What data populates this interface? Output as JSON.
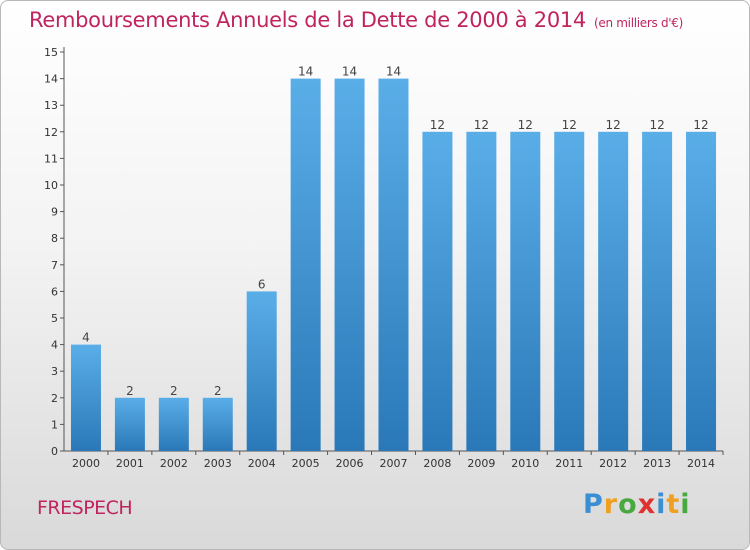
{
  "header": {
    "title": "Remboursements Annuels de la Dette de 2000 à 2014",
    "unit": "(en milliers d'€)"
  },
  "footer": {
    "commune": "FRESPECH",
    "logo_letters": [
      "P",
      "r",
      "o",
      "x",
      "i",
      "t",
      "i"
    ],
    "logo_colors": [
      "#3a8fd4",
      "#f0a020",
      "#4aa840",
      "#e03030",
      "#3a8fd4",
      "#f0a020",
      "#4aa840"
    ]
  },
  "chart_data": {
    "type": "bar",
    "title": "Remboursements Annuels de la Dette de 2000 à 2014",
    "subtitle": "(en milliers d'€)",
    "xlabel": "",
    "ylabel": "",
    "categories": [
      "2000",
      "2001",
      "2002",
      "2003",
      "2004",
      "2005",
      "2006",
      "2007",
      "2008",
      "2009",
      "2010",
      "2011",
      "2012",
      "2013",
      "2014"
    ],
    "values": [
      4,
      2,
      2,
      2,
      6,
      14,
      14,
      14,
      12,
      12,
      12,
      12,
      12,
      12,
      12
    ],
    "ylim": [
      0,
      15
    ],
    "yticks": [
      0,
      1,
      2,
      3,
      4,
      5,
      6,
      7,
      8,
      9,
      10,
      11,
      12,
      13,
      14,
      15
    ],
    "grid": false,
    "bar_color_light": "#5aaee8",
    "bar_color_dark": "#2a78b8"
  }
}
